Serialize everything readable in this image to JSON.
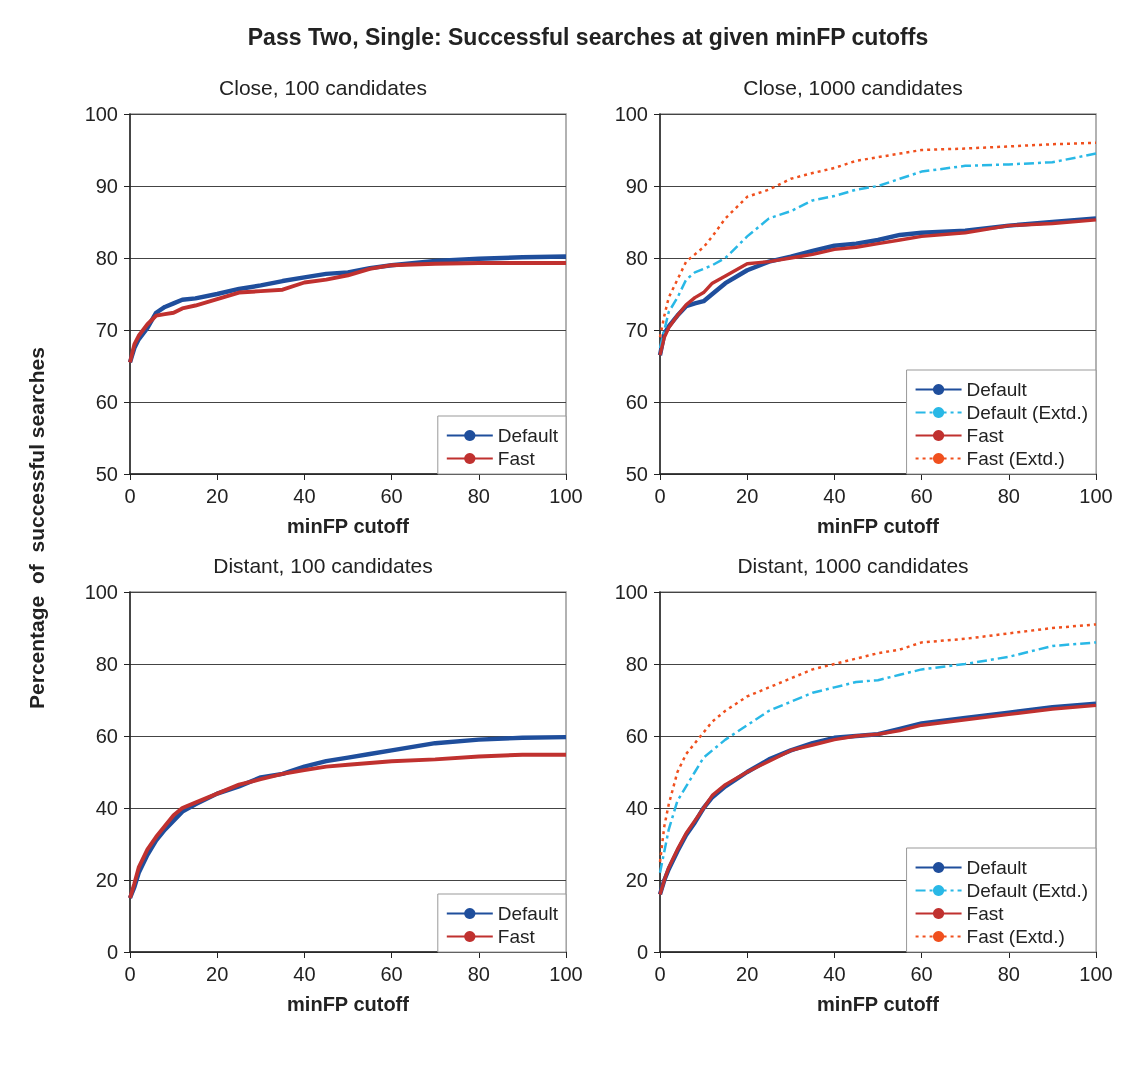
{
  "chart_data": [
    {
      "type": "line",
      "title": "Close, 100 candidates",
      "xlabel": "minFP cutoff",
      "ylabel": "Percentage  of  successful searches",
      "annotations": [
        "Pass Two, Single: Successful searches at given minFP cutoffs"
      ],
      "xlim": [
        0,
        100
      ],
      "xticks": [
        0,
        20,
        40,
        60,
        80,
        100
      ],
      "ylim": [
        50,
        100
      ],
      "yticks": [
        50,
        60,
        70,
        80,
        90,
        100
      ],
      "grid": "y",
      "legend": "bottom right",
      "marker": "none",
      "line_style": "solid",
      "x": [
        0,
        1,
        2,
        4,
        6,
        8,
        10,
        12,
        15,
        20,
        25,
        30,
        35,
        40,
        45,
        50,
        55,
        60,
        70,
        80,
        90,
        100
      ],
      "series": [
        {
          "name": "Default",
          "color": "#1f4e9c",
          "values": [
            65.5,
            67.5,
            68.7,
            70.3,
            72.4,
            73.2,
            73.7,
            74.2,
            74.4,
            75,
            75.7,
            76.2,
            76.8,
            77.3,
            77.8,
            78,
            78.6,
            79,
            79.6,
            79.9,
            80.1,
            80.2
          ]
        },
        {
          "name": "Fast",
          "color": "#c0312f",
          "values": [
            65.5,
            68,
            69.2,
            70.8,
            72,
            72.2,
            72.4,
            73,
            73.4,
            74.3,
            75.2,
            75.4,
            75.6,
            76.6,
            77,
            77.6,
            78.5,
            79,
            79.2,
            79.3,
            79.3,
            79.3
          ]
        }
      ]
    },
    {
      "type": "line",
      "title": "Close, 1000 candidates",
      "xlabel": "minFP cutoff",
      "xlim": [
        0,
        100
      ],
      "xticks": [
        0,
        20,
        40,
        60,
        80,
        100
      ],
      "ylim": [
        50,
        100
      ],
      "yticks": [
        50,
        60,
        70,
        80,
        90,
        100
      ],
      "grid": "y",
      "legend": "bottom right",
      "marker": "none",
      "line_style": "solid",
      "x": [
        0,
        1,
        2,
        4,
        6,
        8,
        10,
        12,
        15,
        20,
        25,
        30,
        35,
        40,
        45,
        50,
        55,
        60,
        70,
        80,
        90,
        100
      ],
      "series": [
        {
          "name": "Default",
          "color": "#1f4e9c",
          "values": [
            66.5,
            69.5,
            70.5,
            72,
            73.3,
            73.7,
            74,
            75,
            76.5,
            78.3,
            79.5,
            80.2,
            81,
            81.7,
            82,
            82.5,
            83.2,
            83.5,
            83.8,
            84.5,
            85,
            85.5
          ]
        },
        {
          "name": "Default (Extd.)",
          "color": "#29b8e6",
          "line_style": "dashdot",
          "values": [
            67.5,
            70,
            72.5,
            74.5,
            77,
            78,
            78.5,
            79,
            80,
            83,
            85.5,
            86.5,
            88,
            88.6,
            89.5,
            90,
            91,
            92,
            92.8,
            93,
            93.3,
            94.5
          ]
        },
        {
          "name": "Fast",
          "color": "#c0312f",
          "values": [
            66.5,
            69,
            70.3,
            72,
            73.5,
            74.5,
            75.2,
            76.5,
            77.5,
            79.2,
            79.5,
            80,
            80.5,
            81.2,
            81.5,
            82,
            82.5,
            83,
            83.5,
            84.5,
            84.8,
            85.3
          ]
        },
        {
          "name": "Fast (Extd.)",
          "color": "#f0501e",
          "line_style": "dotted",
          "values": [
            69,
            72,
            74.5,
            77,
            79.5,
            80.5,
            81.5,
            83,
            85.5,
            88.5,
            89.5,
            91,
            91.8,
            92.5,
            93.5,
            94,
            94.5,
            95,
            95.2,
            95.5,
            95.8,
            96
          ]
        }
      ]
    },
    {
      "type": "line",
      "title": "Distant, 100 candidates",
      "xlabel": "minFP cutoff",
      "xlim": [
        0,
        100
      ],
      "xticks": [
        0,
        20,
        40,
        60,
        80,
        100
      ],
      "ylim": [
        0,
        100
      ],
      "yticks": [
        0,
        20,
        40,
        60,
        80,
        100
      ],
      "grid": "y",
      "legend": "bottom right",
      "marker": "none",
      "line_style": "solid",
      "x": [
        0,
        1,
        2,
        4,
        6,
        8,
        10,
        12,
        15,
        20,
        25,
        30,
        35,
        40,
        45,
        50,
        55,
        60,
        70,
        80,
        90,
        100
      ],
      "series": [
        {
          "name": "Default",
          "color": "#1f4e9c",
          "values": [
            15,
            18,
            22,
            27,
            31,
            34,
            36.5,
            39,
            41,
            44,
            46,
            48.5,
            49.5,
            51.5,
            53,
            54,
            55,
            56,
            58,
            59,
            59.5,
            59.7
          ]
        },
        {
          "name": "Fast",
          "color": "#c0312f",
          "values": [
            15,
            19,
            23.5,
            28.5,
            32,
            35,
            38,
            40,
            41.5,
            44,
            46.5,
            48,
            49.5,
            50.5,
            51.5,
            52,
            52.5,
            53,
            53.5,
            54.3,
            54.8,
            54.8
          ]
        }
      ]
    },
    {
      "type": "line",
      "title": "Distant, 1000 candidates",
      "xlabel": "minFP cutoff",
      "xlim": [
        0,
        100
      ],
      "xticks": [
        0,
        20,
        40,
        60,
        80,
        100
      ],
      "ylim": [
        0,
        100
      ],
      "yticks": [
        0,
        20,
        40,
        60,
        80,
        100
      ],
      "grid": "y",
      "legend": "bottom right",
      "marker": "none",
      "line_style": "solid",
      "x": [
        0,
        1,
        2,
        4,
        6,
        8,
        10,
        12,
        15,
        20,
        25,
        30,
        35,
        40,
        45,
        50,
        55,
        60,
        70,
        80,
        90,
        100
      ],
      "series": [
        {
          "name": "Default",
          "color": "#1f4e9c",
          "values": [
            16,
            20,
            23,
            28,
            32.5,
            36,
            40,
            43,
            46,
            50,
            53.5,
            56,
            58,
            59.5,
            60,
            60.5,
            62,
            63.5,
            65,
            66.5,
            68,
            69
          ]
        },
        {
          "name": "Default (Extd.)",
          "color": "#29b8e6",
          "line_style": "dashdot",
          "values": [
            22,
            28,
            34,
            42,
            46,
            50,
            54,
            56,
            59,
            63,
            67,
            69.5,
            72,
            73.5,
            75,
            75.5,
            77,
            78.5,
            80,
            82,
            85,
            86
          ]
        },
        {
          "name": "Fast",
          "color": "#c0312f",
          "values": [
            16,
            20,
            23.5,
            28.5,
            33,
            36.5,
            40,
            43.5,
            46.5,
            50,
            53,
            56,
            57.5,
            59,
            60,
            60.5,
            61.5,
            63,
            64.5,
            66,
            67.5,
            68.5
          ]
        },
        {
          "name": "Fast (Extd.)",
          "color": "#f0501e",
          "line_style": "dotted",
          "values": [
            25,
            35,
            41,
            50,
            55,
            58,
            61,
            64,
            67,
            71,
            73.5,
            76,
            78.5,
            80,
            81.5,
            83,
            84,
            86,
            87,
            88.5,
            90,
            91
          ]
        }
      ]
    }
  ]
}
